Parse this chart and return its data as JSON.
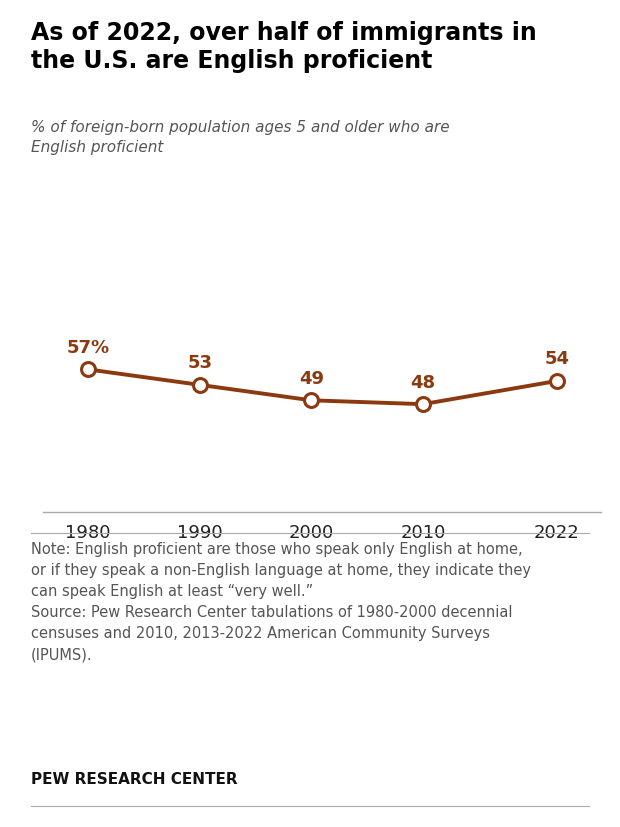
{
  "title": "As of 2022, over half of immigrants in\nthe U.S. are English proficient",
  "subtitle": "% of foreign-born population ages 5 and older who are\nEnglish proficient",
  "years": [
    1980,
    1990,
    2000,
    2010,
    2022
  ],
  "values": [
    57,
    53,
    49,
    48,
    54
  ],
  "labels": [
    "57%",
    "53",
    "49",
    "48",
    "54"
  ],
  "line_color": "#8B3A0F",
  "marker_face": "#FFFFFF",
  "background_color": "#FFFFFF",
  "note_text": "Note: English proficient are those who speak only English at home,\nor if they speak a non-English language at home, they indicate they\ncan speak English at least “very well.”\nSource: Pew Research Center tabulations of 1980-2000 decennial\ncensuses and 2010, 2013-2022 American Community Surveys\n(IPUMS).",
  "footer_text": "PEW RESEARCH CENTER",
  "title_fontsize": 17,
  "subtitle_fontsize": 11,
  "label_fontsize": 13,
  "tick_fontsize": 13,
  "note_fontsize": 10.5,
  "footer_fontsize": 11,
  "ylim": [
    20,
    80
  ],
  "xlim": [
    1976,
    2026
  ]
}
